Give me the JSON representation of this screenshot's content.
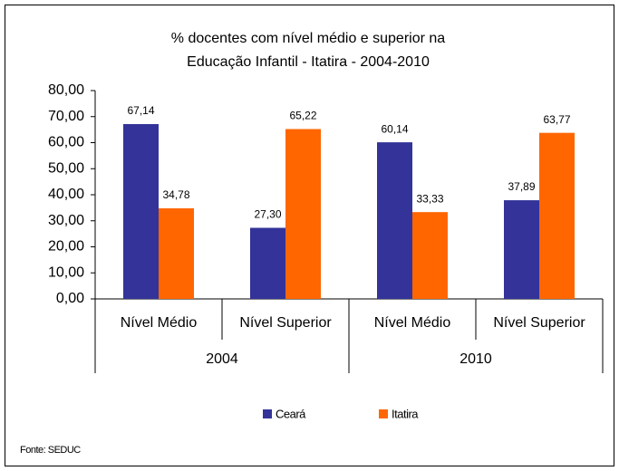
{
  "chart_data": {
    "type": "bar",
    "title": [
      "% docentes com nível médio e superior na",
      "Educação Infantil - Itatira - 2004-2010"
    ],
    "categories": [
      "Nível Médio",
      "Nível Superior",
      "Nível Médio",
      "Nível Superior"
    ],
    "groups": [
      "2004",
      "2010"
    ],
    "series": [
      {
        "name": "Ceará",
        "color": "#333399",
        "values": [
          67.14,
          27.3,
          60.14,
          37.89
        ],
        "value_labels": [
          "67,14",
          "27,30",
          "60,14",
          "37,89"
        ]
      },
      {
        "name": "Itatira",
        "color": "#ff6600",
        "values": [
          34.78,
          65.22,
          33.33,
          63.77
        ],
        "value_labels": [
          "34,78",
          "65,22",
          "33,33",
          "63,77"
        ]
      }
    ],
    "ylim": [
      0,
      80
    ],
    "yticks": [
      {
        "value": 0,
        "label": "0,00"
      },
      {
        "value": 10,
        "label": "10,00"
      },
      {
        "value": 20,
        "label": "20,00"
      },
      {
        "value": 30,
        "label": "30,00"
      },
      {
        "value": 40,
        "label": "40,00"
      },
      {
        "value": 50,
        "label": "50,00"
      },
      {
        "value": 60,
        "label": "60,00"
      },
      {
        "value": 70,
        "label": "70,00"
      },
      {
        "value": 80,
        "label": "80,00"
      }
    ],
    "grid": false,
    "legend": "bottom",
    "source": "Fonte: SEDUC"
  }
}
